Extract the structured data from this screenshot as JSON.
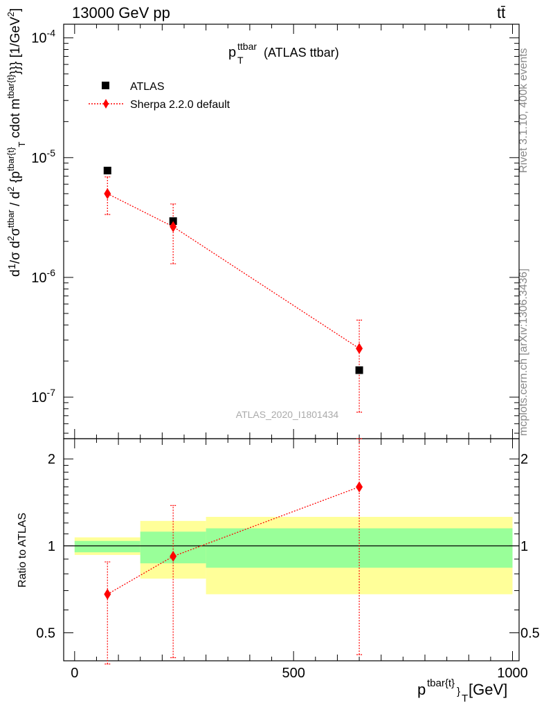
{
  "header": {
    "energy_label": "13000 GeV pp",
    "process_label": "tt̄",
    "plot_title": "(ATLAS ttbar)",
    "plot_title_symbol": "p",
    "plot_title_sup": "ttbar",
    "plot_title_sub": "T"
  },
  "side_labels": {
    "rivet": "Rivet 3.1.10,  400k events",
    "mcplots": "mcplots.cern.ch [arXiv:1306.3436]"
  },
  "watermark": "ATLAS_2020_I1801434",
  "legend": {
    "data_label": "ATLAS",
    "mc_label": "Sherpa 2.2.0 default"
  },
  "colors": {
    "data": "#000000",
    "mc": "#ff0000",
    "band_inner": "#99ff99",
    "band_outer": "#ffff99"
  },
  "chart_data": [
    {
      "type": "scatter",
      "panel": "main",
      "y_scale": "log",
      "ylabel": "d\\frac{1}{\\sigma}d\\frac{d^{2}\\sigma^{ttbar}}{d^{2} {p^{tbar{t}}_{T} cdot m^{tbar{t}}}} [1/GeV^{2}]",
      "ylim": [
        4.5e-08,
        0.00013
      ],
      "xlim": [
        -25,
        1015
      ],
      "y_ticks": [
        {
          "value": 0.0001,
          "mantissa": "10",
          "exp": "-4"
        },
        {
          "value": 1e-05,
          "mantissa": "10",
          "exp": "-5"
        },
        {
          "value": 1e-06,
          "mantissa": "10",
          "exp": "-6"
        },
        {
          "value": 1e-07,
          "mantissa": "10",
          "exp": "-7"
        }
      ],
      "series": [
        {
          "name": "ATLAS",
          "marker": "square",
          "x": [
            75,
            225,
            650
          ],
          "y": [
            7.8e-06,
            2.95e-06,
            1.68e-07
          ]
        },
        {
          "name": "Sherpa 2.2.0 default",
          "marker": "diamond",
          "line": "dotted",
          "x": [
            75,
            225,
            650
          ],
          "y": [
            5e-06,
            2.65e-06,
            2.55e-07
          ],
          "y_err_low": [
            3.35e-06,
            1.3e-06,
            7.5e-08
          ],
          "y_err_high": [
            6.9e-06,
            4.1e-06,
            4.4e-07
          ]
        }
      ]
    },
    {
      "type": "scatter",
      "panel": "ratio",
      "ylabel": "Ratio to ATLAS",
      "xlabel": "p^{tbar{t}}_{T} [GeV]",
      "xlabel_parts": {
        "base": "p",
        "sup": "tbar{t}",
        "close": "}",
        "sub": "T",
        "unit": " [GeV]"
      },
      "xlim": [
        -25,
        1015
      ],
      "ylim": [
        0.4,
        2.35
      ],
      "x_ticks": [
        0,
        500,
        1000
      ],
      "y_ticks": [
        0.5,
        1,
        2
      ],
      "x_tick_labels": [
        "0",
        "500",
        "1000"
      ],
      "y_tick_labels": [
        "0.5",
        "1",
        "2"
      ],
      "bands": [
        {
          "x0": 0,
          "x1": 150,
          "inner": [
            0.95,
            1.04
          ],
          "outer": [
            0.93,
            1.07
          ]
        },
        {
          "x0": 150,
          "x1": 300,
          "inner": [
            0.87,
            1.12
          ],
          "outer": [
            0.77,
            1.22
          ]
        },
        {
          "x0": 300,
          "x1": 1000,
          "inner": [
            0.84,
            1.15
          ],
          "outer": [
            0.68,
            1.26
          ]
        }
      ],
      "series": [
        {
          "name": "Sherpa 2.2.0 default",
          "marker": "diamond",
          "line": "dotted",
          "x": [
            75,
            225,
            650
          ],
          "y": [
            0.68,
            0.92,
            1.6
          ],
          "y_err_low": [
            0.39,
            0.41,
            0.42
          ],
          "y_err_high": [
            0.88,
            1.38,
            2.6
          ]
        }
      ]
    }
  ]
}
